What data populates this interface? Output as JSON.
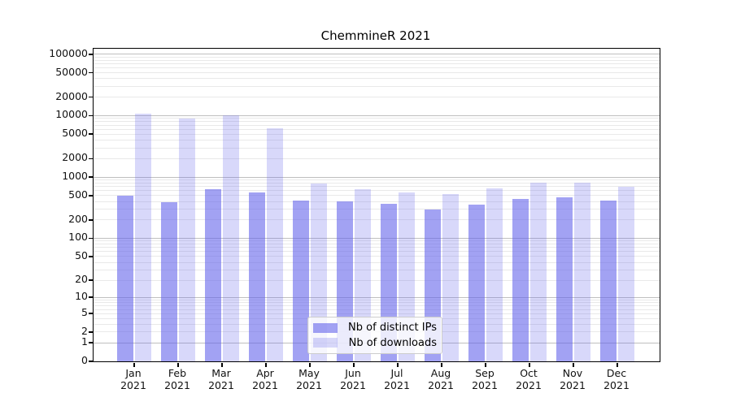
{
  "title": "ChemmineR 2021",
  "legend": {
    "items": [
      {
        "label": "Nb of distinct IPs"
      },
      {
        "label": "Nb of downloads"
      }
    ]
  },
  "chart_data": {
    "type": "bar",
    "title": "ChemmineR 2021",
    "categories": [
      "Jan",
      "Feb",
      "Mar",
      "Apr",
      "May",
      "Jun",
      "Jul",
      "Aug",
      "Sep",
      "Oct",
      "Nov",
      "Dec"
    ],
    "year": "2021",
    "series": [
      {
        "name": "Nb of distinct IPs",
        "color": "rgba(100,100,235,0.60)",
        "legend_color": "#a3a3f1",
        "values": [
          500,
          390,
          640,
          560,
          415,
          400,
          365,
          295,
          360,
          445,
          470,
          410
        ]
      },
      {
        "name": "Nb of downloads",
        "color": "rgba(100,100,235,0.25)",
        "legend_color": "#d9d9f9",
        "values": [
          10800,
          9000,
          10150,
          6200,
          790,
          635,
          560,
          535,
          645,
          800,
          805,
          690
        ]
      }
    ],
    "y_axis": {
      "scale": "log10(value+1)",
      "tick_values": [
        0,
        1,
        2,
        5,
        10,
        20,
        50,
        100,
        200,
        500,
        1000,
        2000,
        5000,
        10000,
        20000,
        50000,
        100000
      ],
      "max_value": 122000
    },
    "grid": true,
    "gridline_major_color": "#bfbfbf",
    "gridline_minor_color": "#e9e9e9",
    "legend_position": "lower center inside"
  }
}
